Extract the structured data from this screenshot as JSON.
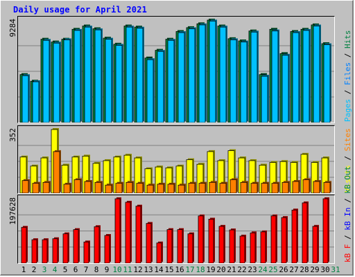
{
  "chart_data": {
    "type": "bar",
    "title": "Daily usage for April 2021",
    "x": [
      "1",
      "2",
      "3",
      "4",
      "5",
      "6",
      "7",
      "8",
      "9",
      "10",
      "11",
      "12",
      "13",
      "14",
      "15",
      "16",
      "17",
      "18",
      "19",
      "20",
      "21",
      "22",
      "23",
      "24",
      "25",
      "26",
      "27",
      "28",
      "29",
      "30",
      "31"
    ],
    "weekend_days": [
      3,
      4,
      10,
      11,
      17,
      18,
      24,
      25,
      31
    ],
    "colors": {
      "hits": "#008040",
      "files": "#0080ff",
      "pages": "#00c0ff",
      "visits": "#ffff00",
      "sites": "#ff8000",
      "kbin": "#0000ff",
      "kbout": "#008040",
      "kbf": "#ff0000",
      "weekday_label": "#000000",
      "weekend_label": "#008040",
      "title": "#0000ff"
    },
    "panels": [
      {
        "max_label": "9284",
        "ylim": [
          0,
          9284
        ],
        "right_labels": [
          {
            "text": "Pages",
            "color": "#00c0ff"
          },
          {
            "text": " / ",
            "color": "#000000"
          },
          {
            "text": "Files",
            "color": "#0080ff"
          },
          {
            "text": " / ",
            "color": "#000000"
          },
          {
            "text": "Hits",
            "color": "#008040"
          }
        ],
        "series": [
          {
            "name": "Hits",
            "color": "#008040",
            "values": [
              4350,
              3750,
              7550,
              7300,
              7550,
              8450,
              8750,
              8500,
              7650,
              7100,
              8750,
              8650,
              5850,
              6550,
              7550,
              8250,
              8600,
              8950,
              9284,
              8750,
              7600,
              7400,
              8300,
              4350,
              8450,
              6250,
              8250,
              8450,
              8850,
              7150,
              0
            ]
          },
          {
            "name": "Pages",
            "color": "#00c0ff",
            "values": [
              4250,
              3700,
              7450,
              7200,
              7500,
              8350,
              8650,
              8400,
              7550,
              7000,
              8650,
              8550,
              5700,
              6450,
              7450,
              8150,
              8500,
              8850,
              9200,
              8650,
              7500,
              7300,
              8200,
              4200,
              8300,
              6100,
              8150,
              8350,
              8750,
              7050,
              0
            ]
          }
        ]
      },
      {
        "max_label": "352",
        "ylim": [
          0,
          352
        ],
        "right_labels": [
          {
            "text": "Visits",
            "color": "#ffff00"
          },
          {
            "text": " / ",
            "color": "#000000"
          },
          {
            "text": "Sites",
            "color": "#ff8000"
          }
        ],
        "series": [
          {
            "name": "Visits",
            "color": "#ffff00",
            "values": [
              200,
              150,
              195,
              352,
              155,
              200,
              205,
              165,
              180,
              200,
              210,
              195,
              135,
              145,
              140,
              150,
              185,
              160,
              230,
              180,
              235,
              195,
              180,
              155,
              170,
              175,
              170,
              215,
              170,
              195,
              0
            ]
          },
          {
            "name": "Sites",
            "color": "#ff8000",
            "values": [
              70,
              55,
              60,
              230,
              50,
              75,
              65,
              60,
              45,
              55,
              60,
              55,
              45,
              50,
              50,
              45,
              55,
              55,
              60,
              55,
              75,
              60,
              55,
              55,
              55,
              60,
              65,
              75,
              65,
              60,
              0
            ]
          }
        ]
      },
      {
        "max_label": "197628",
        "ylim": [
          0,
          197628
        ],
        "right_labels": [
          {
            "text": "kB F",
            "color": "#ff0000"
          },
          {
            "text": " / ",
            "color": "#000000"
          },
          {
            "text": "kB In",
            "color": "#0000ff"
          },
          {
            "text": " / ",
            "color": "#000000"
          },
          {
            "text": "kB Out",
            "color": "#008040"
          }
        ],
        "series": [
          {
            "name": "kB F",
            "color": "#ff0000",
            "values": [
              110000,
              72000,
              72000,
              75000,
              90000,
              103000,
              65000,
              112000,
              85000,
              197628,
              187000,
              175000,
              122000,
              62000,
              103000,
              103000,
              90000,
              145000,
              135000,
              113000,
              102000,
              83000,
              93000,
              96000,
              145000,
              140000,
              163000,
              185000,
              113000,
              197628,
              0
            ]
          }
        ]
      }
    ]
  }
}
